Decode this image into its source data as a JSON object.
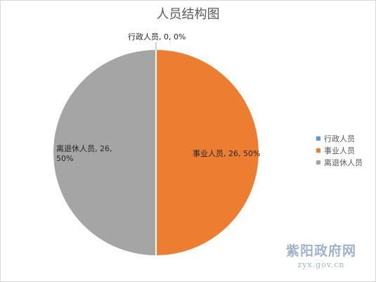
{
  "chart_data": {
    "type": "pie",
    "title": "人员结构图",
    "categories": [
      "行政人员",
      "事业人员",
      "离退休人员"
    ],
    "values": [
      0,
      26,
      26
    ],
    "percentages": [
      "0%",
      "50%",
      "50%"
    ],
    "data_labels": [
      "行政人员, 0, 0%",
      "事业人员, 26, 50%",
      "离退休人员, 26, 50%"
    ],
    "colors": [
      "#5b9bd5",
      "#ed7d31",
      "#a5a5a5"
    ],
    "legend": {
      "position": "right",
      "entries": [
        "行政人员",
        "事业人员",
        "离退休人员"
      ]
    }
  },
  "watermark": {
    "name": "紫阳政府网",
    "url": "zyx.gov.cn"
  }
}
